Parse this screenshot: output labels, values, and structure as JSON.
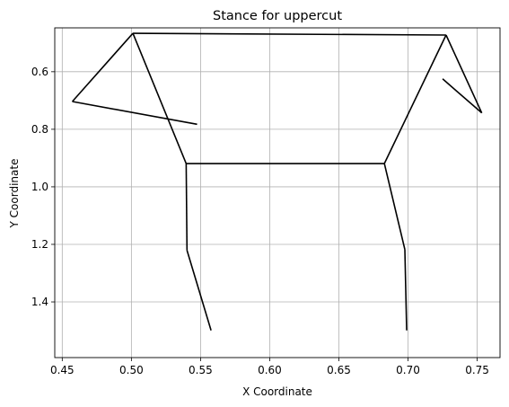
{
  "chart_data": {
    "type": "line",
    "title": "Stance for uppercut",
    "xlabel": "X Coordinate",
    "ylabel": "Y Coordinate",
    "xlim": [
      0.4446,
      0.7665
    ],
    "ylim": [
      1.5935,
      0.4475
    ],
    "y_inverted": true,
    "grid": true,
    "xticks": [
      0.45,
      0.5,
      0.55,
      0.6,
      0.65,
      0.7,
      0.75
    ],
    "xtick_labels": [
      "0.45",
      "0.50",
      "0.55",
      "0.60",
      "0.65",
      "0.70",
      "0.75"
    ],
    "yticks": [
      0.6,
      0.8,
      1.0,
      1.2,
      1.4
    ],
    "ytick_labels": [
      "0.6",
      "0.8",
      "1.0",
      "1.2",
      "1.4"
    ],
    "line_color": "#000000",
    "segments": [
      {
        "from": [
          0.5011,
          0.4664
        ],
        "to": [
          0.7275,
          0.4725
        ]
      },
      {
        "from": [
          0.5011,
          0.4664
        ],
        "to": [
          0.4573,
          0.7035
        ]
      },
      {
        "from": [
          0.4573,
          0.7035
        ],
        "to": [
          0.5475,
          0.7827
        ]
      },
      {
        "from": [
          0.5011,
          0.4664
        ],
        "to": [
          0.5396,
          0.9191
        ]
      },
      {
        "from": [
          0.7275,
          0.4725
        ],
        "to": [
          0.6829,
          0.9191
        ]
      },
      {
        "from": [
          0.7275,
          0.4725
        ],
        "to": [
          0.7533,
          0.7431
        ]
      },
      {
        "from": [
          0.7533,
          0.7431
        ],
        "to": [
          0.725,
          0.6248
        ]
      },
      {
        "from": [
          0.5396,
          0.9191
        ],
        "to": [
          0.6829,
          0.9191
        ]
      },
      {
        "from": [
          0.5396,
          0.9191
        ],
        "to": [
          0.5402,
          1.2208
        ]
      },
      {
        "from": [
          0.5402,
          1.2208
        ],
        "to": [
          0.5576,
          1.4991
        ]
      },
      {
        "from": [
          0.6829,
          0.9191
        ],
        "to": [
          0.6977,
          1.2177
        ]
      },
      {
        "from": [
          0.6977,
          1.2177
        ],
        "to": [
          0.699,
          1.4991
        ]
      }
    ]
  }
}
